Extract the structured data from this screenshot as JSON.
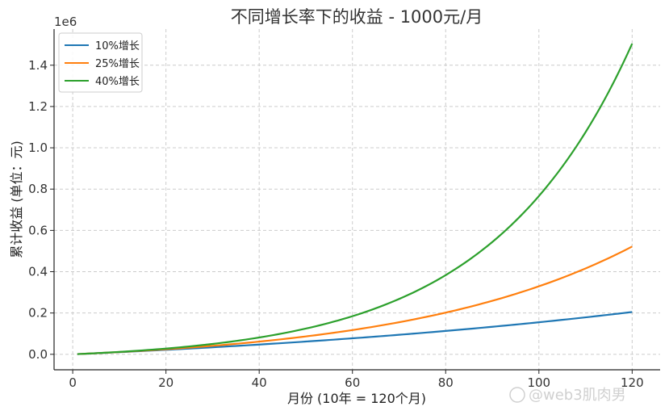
{
  "chart_data": {
    "type": "line",
    "title": "不同增长率下的收益 - 1000元/月",
    "xlabel": "月份 (10年 = 120个月)",
    "ylabel": "累计收益 (单位：元)",
    "y_offset_label": "1e6",
    "y_scale": 1000000,
    "xlim": [
      -4,
      126
    ],
    "ylim": [
      -75000,
      1575000
    ],
    "x_ticks": [
      0,
      20,
      40,
      60,
      80,
      100,
      120
    ],
    "y_ticks": [
      0,
      200000,
      400000,
      600000,
      800000,
      1000000,
      1200000,
      1400000
    ],
    "y_tick_labels": [
      "0.0",
      "0.2",
      "0.4",
      "0.6",
      "0.8",
      "1.0",
      "1.2",
      "1.4"
    ],
    "grid": true,
    "legend_position": "top-left",
    "monthly_contribution": 1000,
    "series": [
      {
        "name": "10%增长",
        "color": "#1f77b4",
        "annual_rate": 0.1
      },
      {
        "name": "25%增长",
        "color": "#ff7f0e",
        "annual_rate": 0.25
      },
      {
        "name": "40%增长",
        "color": "#2ca02c",
        "annual_rate": 0.4
      }
    ],
    "sample_points": {
      "x": [
        1,
        20,
        40,
        60,
        80,
        100,
        120
      ],
      "10%增长": [
        1000,
        21700,
        47000,
        77600,
        114800,
        159800,
        206600
      ],
      "25%增长": [
        1000,
        24300,
        58000,
        109400,
        183500,
        315200,
        525500
      ],
      "40%增长": [
        1000,
        25000,
        76000,
        180000,
        375000,
        780000,
        1505000
      ]
    }
  },
  "watermark": "@web3肌肉男"
}
